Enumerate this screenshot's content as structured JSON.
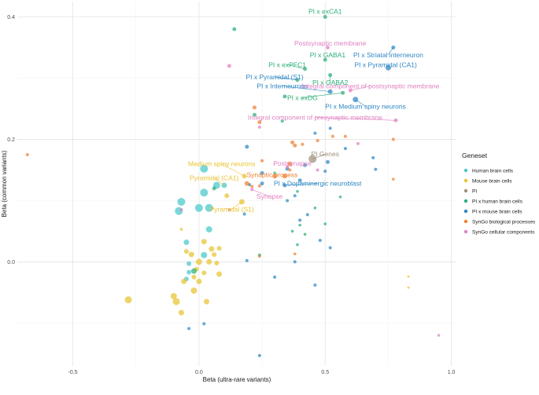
{
  "chart_data": {
    "type": "scatter",
    "xlabel": "Beta (ultra-rare variants)",
    "ylabel": "Beta (common variants)",
    "xlim": [
      -0.72,
      1.02
    ],
    "ylim": [
      -0.17,
      0.425
    ],
    "x_ticks": [
      -0.5,
      0.0,
      0.5,
      1.0
    ],
    "x_tick_labels": [
      "-0.5",
      "0.0",
      "0.5",
      "1.0"
    ],
    "y_ticks": [
      0.0,
      0.2,
      0.4
    ],
    "y_tick_labels": [
      "0.0",
      "0.2",
      "0.4"
    ],
    "grid": true,
    "legend": {
      "title": "Geneset",
      "placement": "right",
      "entries": [
        {
          "name": "Human brain cells",
          "color": "#46C7CB"
        },
        {
          "name": "Mouse brain cells",
          "color": "#E8C330"
        },
        {
          "name": "PI",
          "color": "#A0907C"
        },
        {
          "name": "PI x human brain cells",
          "color": "#2AAE76"
        },
        {
          "name": "PI x mouse brain cells",
          "color": "#2E86C4"
        },
        {
          "name": "SynGo biological processes",
          "color": "#EE7F30"
        },
        {
          "name": "SynGo cellular components",
          "color": "#E080C2"
        }
      ]
    },
    "series": [
      {
        "name": "Human brain cells",
        "points": [
          [
            0.02,
            0.152,
            5
          ],
          [
            -0.07,
            0.098,
            5
          ],
          [
            -0.08,
            0.083,
            5
          ],
          [
            0.0,
            0.088,
            5
          ],
          [
            0.04,
            0.088,
            5
          ],
          [
            0.02,
            0.113,
            5
          ],
          [
            0.04,
            0.053,
            4
          ],
          [
            -0.05,
            0.032,
            3.5
          ],
          [
            0.02,
            0.011,
            4
          ],
          [
            -0.04,
            -0.003,
            3
          ],
          [
            0.07,
            0.125,
            4.5
          ],
          [
            -0.05,
            -0.028,
            3
          ],
          [
            0.1,
            0.125,
            3.5
          ],
          [
            -0.04,
            -0.017,
            3
          ]
        ]
      },
      {
        "name": "Mouse brain cells",
        "points": [
          [
            -0.28,
            -0.062,
            4.5
          ],
          [
            -0.1,
            -0.056,
            4
          ],
          [
            -0.09,
            -0.065,
            4.5
          ],
          [
            -0.07,
            -0.083,
            3.5
          ],
          [
            0.03,
            -0.065,
            3.5
          ],
          [
            -0.02,
            -0.047,
            4
          ],
          [
            -0.06,
            -0.032,
            3.5
          ],
          [
            -0.03,
            0.012,
            3.5
          ],
          [
            -0.05,
            0.017,
            3
          ],
          [
            0.0,
            0.0,
            4
          ],
          [
            0.04,
            0.0,
            3.5
          ],
          [
            0.07,
            -0.002,
            3
          ],
          [
            0.08,
            -0.02,
            3.5
          ],
          [
            0.02,
            0.033,
            3.5
          ],
          [
            0.05,
            0.021,
            3.5
          ],
          [
            0.06,
            0.012,
            3
          ],
          [
            -0.01,
            -0.012,
            3
          ],
          [
            0.0,
            -0.032,
            3.5
          ],
          [
            0.11,
            0.108,
            3
          ],
          [
            0.17,
            0.098,
            3.5
          ],
          [
            0.18,
            0.14,
            3
          ],
          [
            0.02,
            -0.018,
            3
          ],
          [
            -0.02,
            -0.025,
            3
          ],
          [
            0.08,
            0.022,
            3
          ],
          [
            -0.07,
            0.053,
            1.8
          ],
          [
            0.83,
            -0.024,
            1.5
          ],
          [
            0.83,
            -0.042,
            1.5
          ]
        ]
      },
      {
        "name": "PI",
        "points": [
          [
            0.45,
            0.168,
            5
          ]
        ]
      },
      {
        "name": "PI x human brain cells",
        "points": [
          [
            0.14,
            0.38,
            2.5
          ],
          [
            0.5,
            0.4,
            2.5
          ],
          [
            0.5,
            0.33,
            2.5
          ],
          [
            0.42,
            0.315,
            2.5
          ],
          [
            0.52,
            0.305,
            2.5
          ],
          [
            0.39,
            0.297,
            2.5
          ],
          [
            0.34,
            0.27,
            2.5
          ],
          [
            0.22,
            0.24,
            2.5
          ],
          [
            0.33,
            0.23,
            2
          ],
          [
            0.57,
            0.276,
            2.5
          ],
          [
            -0.02,
            -0.015,
            3.5
          ],
          [
            0.06,
            0.12,
            2.5
          ],
          [
            0.24,
            0.011,
            2
          ],
          [
            0.37,
            0.05,
            1.8
          ],
          [
            0.4,
            0.06,
            1.8
          ],
          [
            0.39,
            0.028,
            1.8
          ],
          [
            0.5,
            0.062,
            1.8
          ],
          [
            0.46,
            0.088,
            1.8
          ],
          [
            0.3,
            0.145,
            1.8
          ],
          [
            0.39,
            0.115,
            1.8
          ],
          [
            0.56,
            0.106,
            1.8
          ],
          [
            0.42,
            0.045,
            1.8
          ]
        ]
      },
      {
        "name": "PI x mouse brain cells",
        "points": [
          [
            0.52,
            0.278,
            3
          ],
          [
            0.62,
            0.265,
            3.5
          ],
          [
            0.75,
            0.317,
            3.5
          ],
          [
            0.77,
            0.35,
            2.5
          ],
          [
            0.19,
            0.188,
            2.5
          ],
          [
            0.42,
            0.158,
            2.5
          ],
          [
            0.51,
            0.163,
            2.5
          ],
          [
            0.25,
            0.145,
            2.5
          ],
          [
            0.35,
            0.152,
            2.5
          ],
          [
            0.25,
            0.128,
            2.5
          ],
          [
            0.34,
            0.125,
            2.5
          ],
          [
            0.4,
            0.133,
            2.5
          ],
          [
            0.58,
            0.185,
            2
          ],
          [
            0.69,
            0.17,
            2
          ],
          [
            0.46,
            0.21,
            2
          ],
          [
            0.5,
            0.148,
            2
          ],
          [
            0.35,
            0.1,
            2
          ],
          [
            0.38,
            0.108,
            2
          ],
          [
            0.2,
            0.126,
            2
          ],
          [
            0.18,
            0.078,
            2
          ],
          [
            0.4,
            0.068,
            2
          ],
          [
            0.43,
            0.077,
            2
          ],
          [
            0.48,
            0.035,
            2
          ],
          [
            0.52,
            0.023,
            2
          ],
          [
            0.3,
            -0.025,
            2
          ],
          [
            0.38,
            0.0,
            2
          ],
          [
            0.46,
            -0.038,
            2
          ],
          [
            0.19,
            0.002,
            2
          ],
          [
            0.02,
            -0.101,
            2
          ],
          [
            -0.04,
            -0.109,
            2
          ],
          [
            0.24,
            -0.153,
            2
          ],
          [
            0.52,
            0.218,
            2
          ],
          [
            0.7,
            0.151,
            2
          ]
        ]
      },
      {
        "name": "SynGo biological processes",
        "points": [
          [
            0.36,
            0.16,
            3
          ],
          [
            0.19,
            0.128,
            3
          ],
          [
            0.3,
            0.14,
            3
          ],
          [
            0.34,
            0.14,
            3
          ],
          [
            0.37,
            0.195,
            2.5
          ],
          [
            0.38,
            0.19,
            2.5
          ],
          [
            0.22,
            0.252,
            2.5
          ],
          [
            0.24,
            0.228,
            2.5
          ],
          [
            0.41,
            0.192,
            2
          ],
          [
            0.47,
            0.198,
            2
          ],
          [
            0.53,
            0.205,
            2
          ],
          [
            0.58,
            0.205,
            2
          ],
          [
            0.77,
            0.2,
            2
          ],
          [
            0.25,
            0.165,
            2
          ],
          [
            0.36,
            0.15,
            2
          ],
          [
            0.24,
            0.124,
            2
          ],
          [
            0.21,
            0.123,
            2
          ],
          [
            -0.68,
            0.175,
            2
          ],
          [
            0.38,
            0.013,
            1.8
          ],
          [
            0.24,
            0.009,
            1.8
          ],
          [
            0.77,
            0.135,
            1.8
          ]
        ]
      },
      {
        "name": "SynGo cellular components",
        "points": [
          [
            0.12,
            0.32,
            2.5
          ],
          [
            0.51,
            0.35,
            2.5
          ],
          [
            0.6,
            0.28,
            2.5
          ],
          [
            0.78,
            0.231,
            2.5
          ],
          [
            0.24,
            0.22,
            2
          ],
          [
            0.47,
            0.15,
            2
          ],
          [
            0.35,
            0.155,
            2
          ],
          [
            0.21,
            0.118,
            2
          ],
          [
            0.12,
            0.085,
            2
          ],
          [
            -0.07,
            0.085,
            2
          ],
          [
            0.63,
            0.193,
            2
          ],
          [
            0.95,
            -0.12,
            1.8
          ]
        ]
      }
    ],
    "annotations": [
      {
        "text": "PI x exCA1",
        "series": "PI x human brain cells",
        "at": [
          0.5,
          0.4
        ],
        "label_pos": [
          0.5,
          0.409
        ],
        "anchor": "middle"
      },
      {
        "text": "Postsynaptic membrane",
        "series": "SynGo cellular components",
        "at": [
          0.51,
          0.35
        ],
        "label_pos": [
          0.52,
          0.357
        ],
        "anchor": "middle"
      },
      {
        "text": "PI x Striatal interneuron",
        "series": "PI x mouse brain cells",
        "at": [
          0.77,
          0.35
        ],
        "label_pos": [
          0.75,
          0.338
        ],
        "anchor": "middle"
      },
      {
        "text": "PI x GABA1",
        "series": "PI x human brain cells",
        "at": [
          0.5,
          0.33
        ],
        "label_pos": [
          0.51,
          0.338
        ],
        "anchor": "middle"
      },
      {
        "text": "PI x exPFC1",
        "series": "PI x human brain cells",
        "at": [
          0.42,
          0.315
        ],
        "label_pos": [
          0.35,
          0.322
        ],
        "anchor": "middle"
      },
      {
        "text": "PI x Pyramidal (CA1)",
        "series": "PI x mouse brain cells",
        "at": [
          0.75,
          0.317
        ],
        "label_pos": [
          0.74,
          0.322
        ],
        "anchor": "middle"
      },
      {
        "text": "PI x Pyramidal (S1)",
        "series": "PI x mouse brain cells",
        "at": [
          0.39,
          0.297
        ],
        "label_pos": [
          0.3,
          0.302
        ],
        "anchor": "middle"
      },
      {
        "text": "PI x GABA2",
        "series": "PI x human brain cells",
        "at": [
          0.52,
          0.305
        ],
        "label_pos": [
          0.52,
          0.293
        ],
        "anchor": "middle"
      },
      {
        "text": "PI x Interneurons",
        "series": "PI x mouse brain cells",
        "at": [
          0.52,
          0.278
        ],
        "label_pos": [
          0.33,
          0.287
        ],
        "anchor": "middle"
      },
      {
        "text": "Integral component of postsynaptic membrane",
        "series": "SynGo cellular components",
        "at": [
          0.6,
          0.28
        ],
        "label_pos": [
          0.68,
          0.287
        ],
        "anchor": "middle"
      },
      {
        "text": "PI x exDG",
        "series": "PI x human brain cells",
        "at": [
          0.57,
          0.276
        ],
        "label_pos": [
          0.41,
          0.268
        ],
        "anchor": "middle"
      },
      {
        "text": "PI x Medium spiny neurons",
        "series": "PI x mouse brain cells",
        "at": [
          0.62,
          0.265
        ],
        "label_pos": [
          0.66,
          0.254
        ],
        "anchor": "middle"
      },
      {
        "text": "Integral component of presynaptic membrane",
        "series": "SynGo cellular components",
        "at": [
          0.78,
          0.231
        ],
        "label_pos": [
          0.46,
          0.236
        ],
        "anchor": "middle"
      },
      {
        "text": "PI Genes",
        "series": "PI",
        "at": [
          0.45,
          0.168
        ],
        "label_pos": [
          0.5,
          0.176
        ],
        "anchor": "middle"
      },
      {
        "text": "Medium spiny neurons",
        "series": "Mouse brain cells",
        "at": [
          0.18,
          0.14
        ],
        "label_pos": [
          0.09,
          0.16
        ],
        "anchor": "middle"
      },
      {
        "text": "Postsynapse",
        "series": "SynGo cellular components",
        "at": [
          0.35,
          0.155
        ],
        "label_pos": [
          0.37,
          0.161
        ],
        "anchor": "middle"
      },
      {
        "text": "Synaptic process",
        "series": "SynGo biological processes",
        "at": [
          0.3,
          0.14
        ],
        "label_pos": [
          0.29,
          0.142
        ],
        "anchor": "middle"
      },
      {
        "text": "Pyramidal (CA1)",
        "series": "Mouse brain cells",
        "at": [
          0.1,
          0.125
        ],
        "label_pos": [
          0.06,
          0.137
        ],
        "anchor": "middle"
      },
      {
        "text": "PI x Dopaminergic neuroblast",
        "series": "PI x mouse brain cells",
        "at": [
          0.34,
          0.125
        ],
        "label_pos": [
          0.47,
          0.128
        ],
        "anchor": "middle"
      },
      {
        "text": "Synapse",
        "series": "SynGo cellular components",
        "at": [
          0.21,
          0.118
        ],
        "label_pos": [
          0.28,
          0.107
        ],
        "anchor": "middle"
      },
      {
        "text": "Pyramidal (S1)",
        "series": "Mouse brain cells",
        "at": [
          0.17,
          0.098
        ],
        "label_pos": [
          0.13,
          0.086
        ],
        "anchor": "middle"
      }
    ]
  }
}
